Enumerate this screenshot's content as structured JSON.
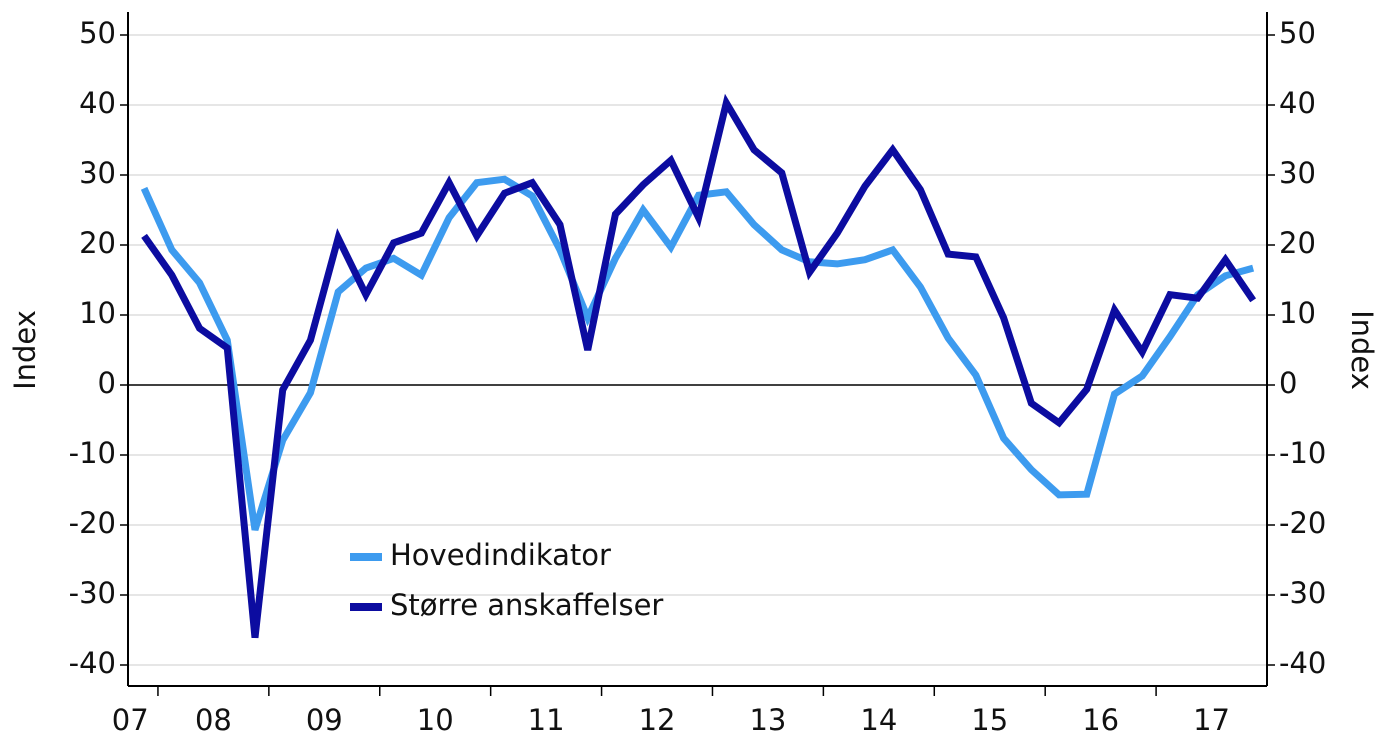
{
  "chart_data": {
    "type": "line",
    "x": [
      2007.875,
      2008.125,
      2008.375,
      2008.625,
      2008.875,
      2009.125,
      2009.375,
      2009.625,
      2009.875,
      2010.125,
      2010.375,
      2010.625,
      2010.875,
      2011.125,
      2011.375,
      2011.625,
      2011.875,
      2012.125,
      2012.375,
      2012.625,
      2012.875,
      2013.125,
      2013.375,
      2013.625,
      2013.875,
      2014.125,
      2014.375,
      2014.625,
      2014.875,
      2015.125,
      2015.375,
      2015.625,
      2015.875,
      2016.125,
      2016.375,
      2016.625,
      2016.875,
      2017.125,
      2017.375,
      2017.625,
      2017.875
    ],
    "series": [
      {
        "name": "Hovedindikator",
        "color": "#3d9bef",
        "values": [
          28.1,
          19.3,
          14.6,
          6.4,
          -20.7,
          -7.9,
          -1.1,
          13.3,
          16.7,
          18.1,
          15.7,
          23.9,
          28.9,
          29.4,
          27,
          19.3,
          9.6,
          18.1,
          25,
          19.7,
          27.1,
          27.6,
          22.9,
          19.3,
          17.6,
          17.3,
          17.9,
          19.3,
          14,
          6.7,
          1.4,
          -7.6,
          -12.1,
          -15.7,
          -15.6,
          -1.3,
          1.3,
          6.9,
          12.9,
          15.6,
          16.7
        ]
      },
      {
        "name": "Større anskaffelser",
        "color": "#0c0ca0",
        "values": [
          21.3,
          15.7,
          8.1,
          5.3,
          -36.1,
          -0.7,
          6.4,
          21,
          12.9,
          20.3,
          21.7,
          28.9,
          21.3,
          27.4,
          28.9,
          22.9,
          5,
          24.4,
          28.6,
          32.1,
          23.9,
          40.3,
          33.6,
          30.3,
          16.1,
          21.7,
          28.4,
          33.6,
          27.9,
          18.7,
          18.3,
          9.6,
          -2.6,
          -5.4,
          -0.6,
          10.7,
          4.7,
          12.9,
          12.4,
          17.9,
          12.1
        ]
      }
    ],
    "xlim": [
      2007.73,
      2018
    ],
    "xticks": [
      2008,
      2009,
      2010,
      2011,
      2012,
      2013,
      2014,
      2015,
      2016,
      2017
    ],
    "xlabels": [
      {
        "value": 2007.75,
        "label": "07"
      },
      {
        "value": 2008.5,
        "label": "08"
      },
      {
        "value": 2009.5,
        "label": "09"
      },
      {
        "value": 2010.5,
        "label": "10"
      },
      {
        "value": 2011.5,
        "label": "11"
      },
      {
        "value": 2012.5,
        "label": "12"
      },
      {
        "value": 2013.5,
        "label": "13"
      },
      {
        "value": 2014.5,
        "label": "14"
      },
      {
        "value": 2015.5,
        "label": "15"
      },
      {
        "value": 2016.5,
        "label": "16"
      },
      {
        "value": 2017.5,
        "label": "17"
      }
    ],
    "ylim": [
      -43,
      53
    ],
    "yticks": [
      -40,
      -30,
      -20,
      -10,
      0,
      10,
      20,
      30,
      40,
      50
    ],
    "y2lim": [
      -43,
      53
    ],
    "y2ticks": [
      -40,
      -30,
      -20,
      -10,
      0,
      10,
      20,
      30,
      40,
      50
    ],
    "ylabel": "Index",
    "y2label": "Index",
    "grid": true
  }
}
